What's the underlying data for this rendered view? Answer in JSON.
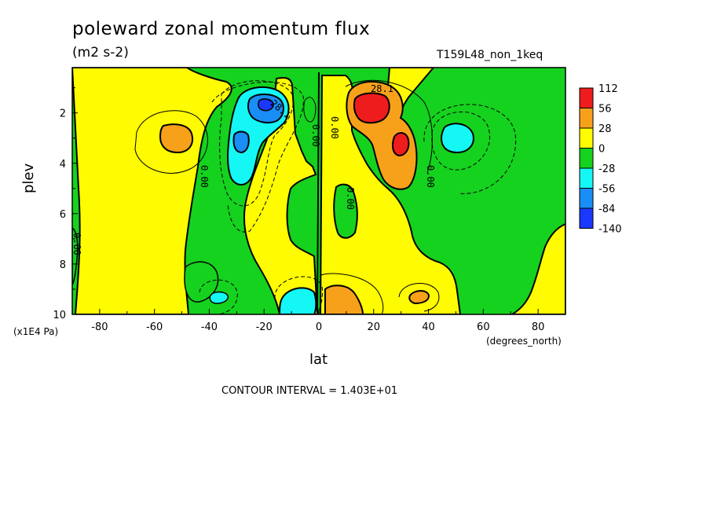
{
  "chart_data": {
    "type": "heatmap",
    "title": "poleward zonal momentum flux",
    "subtitle": "(m2 s-2)",
    "run_id": "T159L48_non_1keq",
    "xlabel": "lat",
    "x_units": "(degrees_north)",
    "ylabel": "plev",
    "y_units": "(x1E4 Pa)",
    "xlim": [
      -90,
      90
    ],
    "ylim": [
      10,
      0.2
    ],
    "x_ticks": [
      "-80",
      "-60",
      "-40",
      "-20",
      "0",
      "20",
      "40",
      "60",
      "80"
    ],
    "y_ticks": [
      "2",
      "4",
      "6",
      "8",
      "10"
    ],
    "contour_interval_text": "CONTOUR INTERVAL = 1.403E+01",
    "contour_labels": [
      "28.1",
      "-28.1",
      "0.00",
      "0.00",
      "0.00",
      "0.00",
      "0.00",
      "0.00"
    ],
    "legend": {
      "labels": [
        "112",
        "56",
        "28",
        "0",
        "-28",
        "-56",
        "-84",
        "-140"
      ],
      "colors": [
        "#ee1c1c",
        "#f7a11a",
        "#fffb00",
        "#15d21e",
        "#14f7f5",
        "#1a8ef7",
        "#1a38ff"
      ]
    },
    "features": [
      {
        "lat": 19,
        "plev": 1.3,
        "value": 112
      },
      {
        "lat": 29,
        "plev": 3.1,
        "value": 60
      },
      {
        "lat": 8,
        "plev": 9.6,
        "value": 40
      },
      {
        "lat": -52,
        "plev": 2.8,
        "value": 35
      },
      {
        "lat": 37,
        "plev": 9.2,
        "value": 30
      },
      {
        "lat": -18,
        "plev": 1.4,
        "value": -90
      },
      {
        "lat": -29,
        "plev": 3.0,
        "value": -55
      },
      {
        "lat": 50,
        "plev": 2.9,
        "value": -40
      },
      {
        "lat": -8,
        "plev": 9.5,
        "value": -45
      },
      {
        "lat": -37,
        "plev": 9.4,
        "value": -35
      }
    ]
  }
}
